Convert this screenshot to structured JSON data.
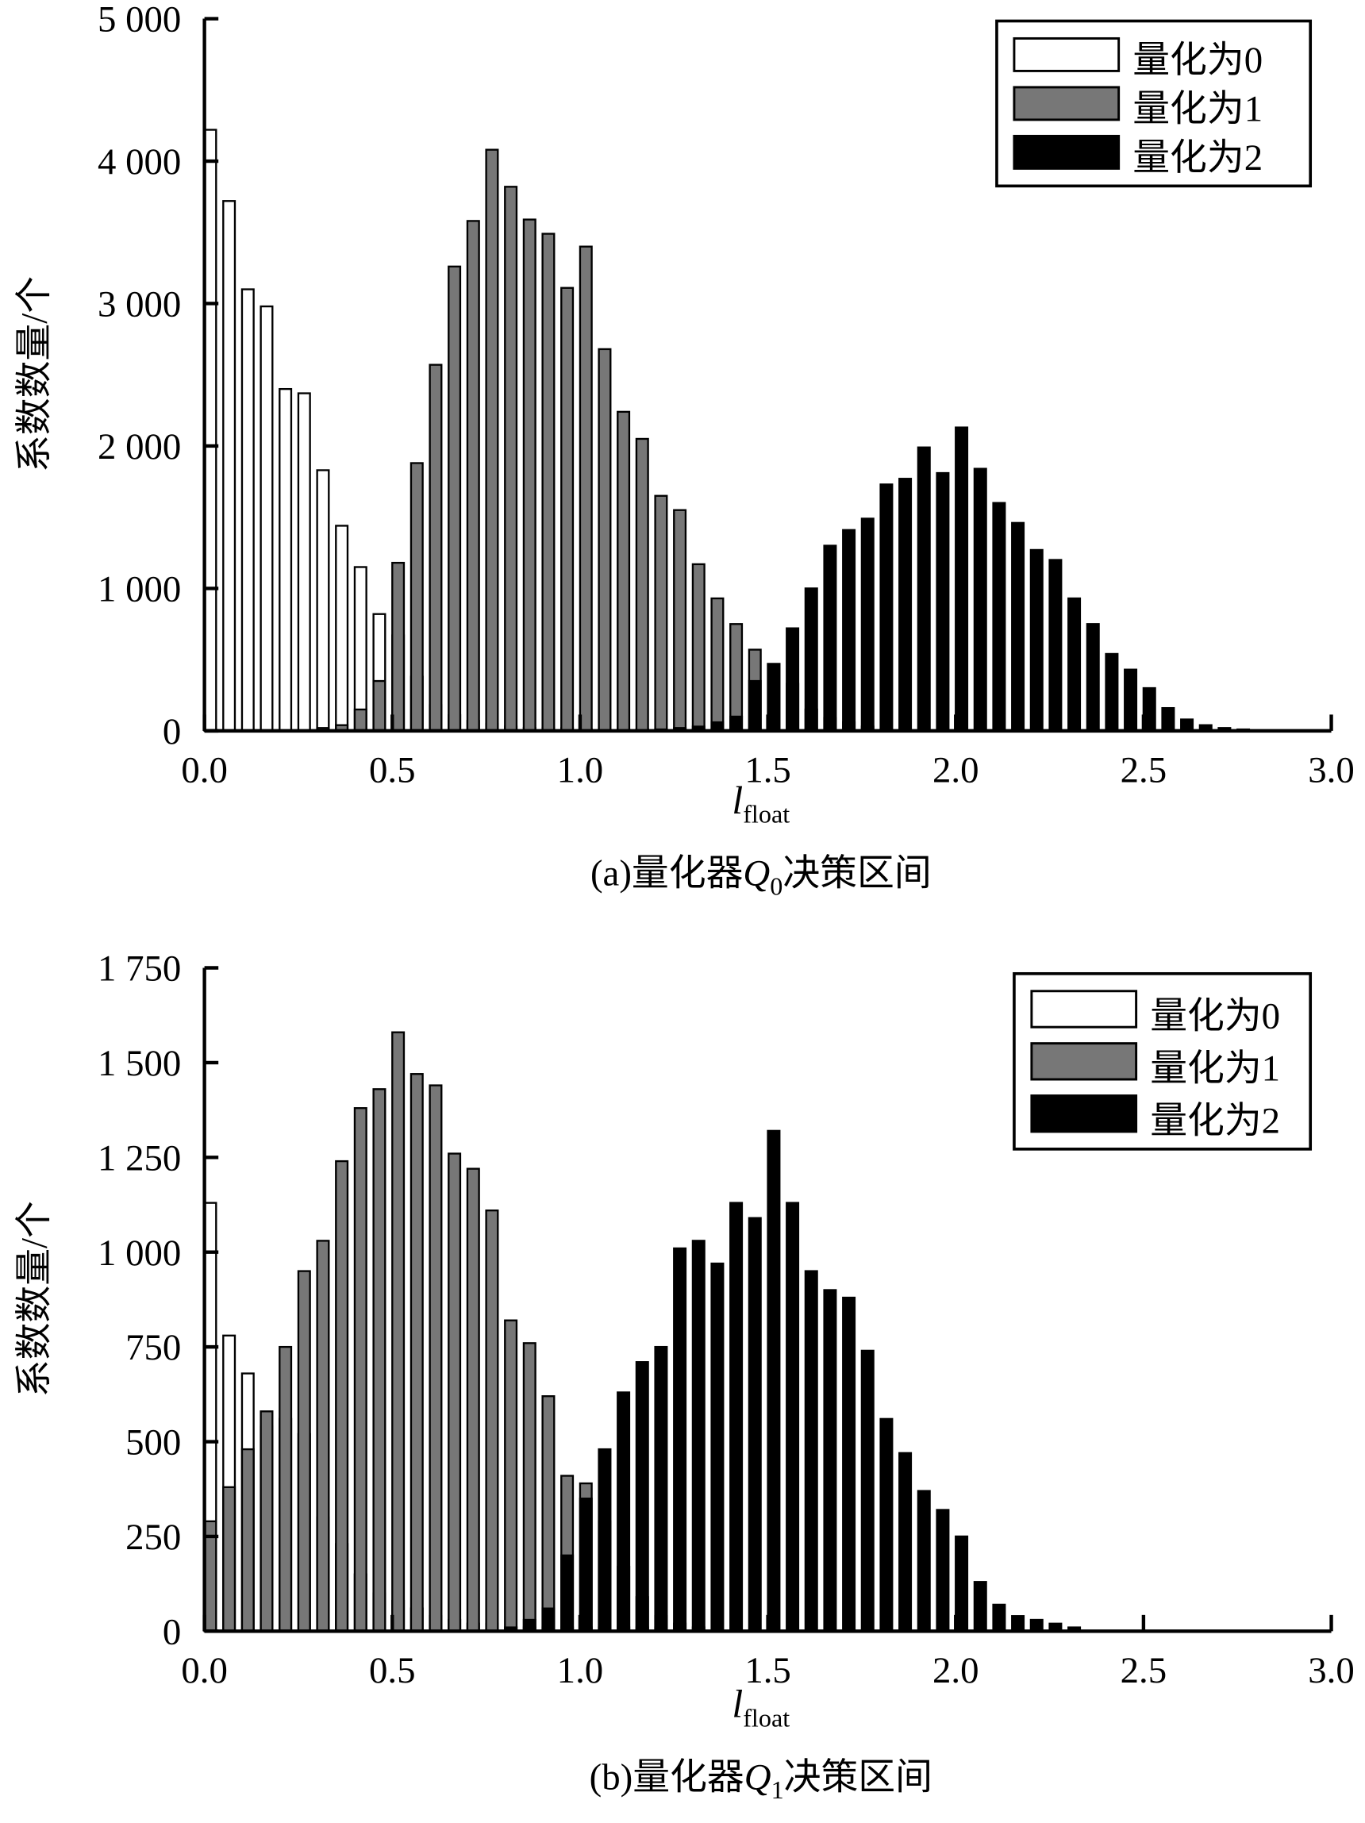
{
  "chart_data": [
    {
      "type": "bar",
      "y_label": "系数数量/个",
      "x_label": "l",
      "x_label_sub": "float",
      "caption_parts": [
        "(a)量化器",
        "Q",
        "0",
        "决策区间"
      ],
      "legend": "upper right",
      "x": [
        0,
        0.05,
        0.1,
        0.15,
        0.2,
        0.25,
        0.3,
        0.35,
        0.4,
        0.45,
        0.5,
        0.55,
        0.6,
        0.65,
        0.7,
        0.75,
        0.8,
        0.85,
        0.9,
        0.95,
        1,
        1.05,
        1.1,
        1.15,
        1.2,
        1.25,
        1.3,
        1.35,
        1.4,
        1.45,
        1.5,
        1.55,
        1.6,
        1.65,
        1.7,
        1.75,
        1.8,
        1.85,
        1.9,
        1.95,
        2,
        2.05,
        2.1,
        2.15,
        2.2,
        2.25,
        2.3,
        2.35,
        2.4,
        2.45,
        2.5,
        2.55,
        2.6,
        2.65,
        2.7,
        2.75
      ],
      "series": [
        {
          "name": "量化为0",
          "color": "#ffffff",
          "values": [
            4220,
            3720,
            3100,
            2980,
            2400,
            2370,
            1830,
            1440,
            1150,
            820,
            670,
            380,
            180,
            110,
            70,
            50,
            30,
            20,
            20,
            20,
            10,
            10,
            10,
            10,
            10,
            10,
            10,
            10,
            10,
            10,
            10,
            10,
            10,
            0,
            0,
            0,
            0,
            0,
            0,
            0,
            0,
            0,
            0,
            0,
            0,
            0,
            0,
            0,
            0,
            0,
            0,
            0,
            0,
            0,
            0,
            0
          ]
        },
        {
          "name": "量化为1",
          "color": "#777777",
          "values": [
            0,
            0,
            0,
            0,
            0,
            0,
            20,
            40,
            150,
            350,
            1180,
            1880,
            2570,
            3260,
            3580,
            4080,
            3820,
            3590,
            3490,
            3110,
            3400,
            2680,
            2240,
            2050,
            1650,
            1550,
            1170,
            930,
            750,
            570,
            470,
            330,
            150,
            90,
            60,
            30,
            10,
            0,
            0,
            0,
            0,
            0,
            0,
            0,
            0,
            0,
            0,
            0,
            0,
            0,
            0,
            0,
            0,
            0,
            0,
            0
          ]
        },
        {
          "name": "量化为2",
          "color": "#000000",
          "values": [
            0,
            0,
            0,
            0,
            0,
            0,
            0,
            0,
            0,
            0,
            0,
            0,
            0,
            0,
            0,
            0,
            0,
            0,
            0,
            0,
            0,
            0,
            0,
            0,
            10,
            20,
            30,
            60,
            100,
            350,
            470,
            720,
            1000,
            1300,
            1410,
            1490,
            1730,
            1770,
            1990,
            1810,
            2130,
            1840,
            1600,
            1460,
            1270,
            1200,
            930,
            750,
            540,
            430,
            300,
            160,
            80,
            40,
            20,
            10
          ]
        }
      ],
      "xlim": [
        0,
        3
      ],
      "xticks": [
        {
          "value": 0,
          "label": "0.0"
        },
        0.5,
        {
          "value": 1,
          "label": "1.0"
        },
        1.5,
        {
          "value": 2,
          "label": "2.0"
        },
        2.5,
        {
          "value": 3,
          "label": "3.0"
        }
      ],
      "ylim": [
        0,
        5000
      ],
      "yticks": [
        0,
        {
          "value": 1000,
          "label": "1 000"
        },
        {
          "value": 2000,
          "label": "2 000"
        },
        {
          "value": 3000,
          "label": "3 000"
        },
        {
          "value": 4000,
          "label": "4 000"
        },
        {
          "value": 5000,
          "label": "5 000"
        }
      ]
    },
    {
      "type": "bar",
      "y_label": "系数数量/个",
      "x_label": "l",
      "x_label_sub": "float",
      "caption_parts": [
        "(b)量化器",
        "Q",
        "1",
        "决策区间"
      ],
      "legend": "upper right",
      "x": [
        0,
        0.05,
        0.1,
        0.15,
        0.2,
        0.25,
        0.3,
        0.35,
        0.4,
        0.45,
        0.5,
        0.55,
        0.6,
        0.65,
        0.7,
        0.75,
        0.8,
        0.85,
        0.9,
        0.95,
        1,
        1.05,
        1.1,
        1.15,
        1.2,
        1.25,
        1.3,
        1.35,
        1.4,
        1.45,
        1.5,
        1.55,
        1.6,
        1.65,
        1.7,
        1.75,
        1.8,
        1.85,
        1.9,
        1.95,
        2,
        2.05,
        2.1,
        2.15,
        2.2,
        2.25,
        2.3
      ],
      "series": [
        {
          "name": "量化为0",
          "color": "#ffffff",
          "values": [
            1130,
            780,
            680,
            540,
            560,
            520,
            300,
            230,
            150,
            100,
            80,
            60,
            40,
            30,
            20,
            20,
            10,
            10,
            10,
            10,
            10,
            10,
            10,
            10,
            10,
            0,
            0,
            0,
            0,
            0,
            0,
            0,
            0,
            0,
            0,
            0,
            0,
            0,
            0,
            0,
            0,
            0,
            0,
            0,
            0,
            0,
            0
          ]
        },
        {
          "name": "量化为1",
          "color": "#777777",
          "values": [
            290,
            380,
            480,
            580,
            750,
            950,
            1030,
            1240,
            1380,
            1430,
            1580,
            1470,
            1440,
            1260,
            1220,
            1110,
            820,
            760,
            620,
            410,
            390,
            290,
            170,
            90,
            40,
            20,
            10,
            0,
            0,
            0,
            0,
            0,
            0,
            0,
            0,
            0,
            0,
            0,
            0,
            0,
            0,
            0,
            0,
            0,
            0,
            0,
            0
          ]
        },
        {
          "name": "量化为2",
          "color": "#000000",
          "values": [
            0,
            0,
            0,
            0,
            0,
            0,
            0,
            0,
            0,
            0,
            0,
            0,
            0,
            0,
            0,
            0,
            10,
            30,
            60,
            200,
            350,
            480,
            630,
            710,
            750,
            1010,
            1030,
            970,
            1130,
            1090,
            1320,
            1130,
            950,
            900,
            880,
            740,
            560,
            470,
            370,
            320,
            250,
            130,
            70,
            40,
            30,
            20,
            10
          ]
        }
      ],
      "xlim": [
        0,
        3
      ],
      "xticks": [
        {
          "value": 0,
          "label": "0.0"
        },
        0.5,
        {
          "value": 1,
          "label": "1.0"
        },
        1.5,
        {
          "value": 2,
          "label": "2.0"
        },
        2.5,
        {
          "value": 3,
          "label": "3.0"
        }
      ],
      "ylim": [
        0,
        1750
      ],
      "yticks": [
        0,
        250,
        500,
        750,
        {
          "value": 1000,
          "label": "1 000"
        },
        {
          "value": 1250,
          "label": "1 250"
        },
        {
          "value": 1500,
          "label": "1 500"
        },
        {
          "value": 1750,
          "label": "1 750"
        }
      ]
    }
  ]
}
